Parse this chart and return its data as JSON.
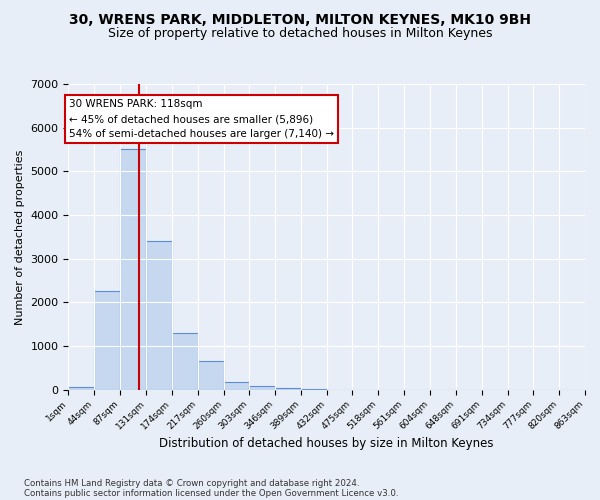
{
  "title": "30, WRENS PARK, MIDDLETON, MILTON KEYNES, MK10 9BH",
  "subtitle": "Size of property relative to detached houses in Milton Keynes",
  "xlabel": "Distribution of detached houses by size in Milton Keynes",
  "ylabel": "Number of detached properties",
  "footnote1": "Contains HM Land Registry data © Crown copyright and database right 2024.",
  "footnote2": "Contains public sector information licensed under the Open Government Licence v3.0.",
  "annotation_title": "30 WRENS PARK: 118sqm",
  "annotation_line1": "← 45% of detached houses are smaller (5,896)",
  "annotation_line2": "54% of semi-detached houses are larger (7,140) →",
  "property_size": 118,
  "bin_edges": [
    1,
    44,
    87,
    131,
    174,
    217,
    260,
    303,
    346,
    389,
    432,
    475,
    518,
    561,
    604,
    648,
    691,
    734,
    777,
    820,
    863
  ],
  "bin_labels": [
    "1sqm",
    "44sqm",
    "87sqm",
    "131sqm",
    "174sqm",
    "217sqm",
    "260sqm",
    "303sqm",
    "346sqm",
    "389sqm",
    "432sqm",
    "475sqm",
    "518sqm",
    "561sqm",
    "604sqm",
    "648sqm",
    "691sqm",
    "734sqm",
    "777sqm",
    "820sqm",
    "863sqm"
  ],
  "bar_heights": [
    50,
    2250,
    5500,
    3400,
    1300,
    650,
    175,
    75,
    30,
    8,
    2,
    1,
    0,
    0,
    0,
    0,
    0,
    0,
    0,
    0
  ],
  "bar_color": "#c5d8f0",
  "bar_edgecolor": "#5b8dd9",
  "vline_color": "#cc0000",
  "ylim": [
    0,
    7000
  ],
  "yticks": [
    0,
    1000,
    2000,
    3000,
    4000,
    5000,
    6000,
    7000
  ],
  "bg_color": "#e8eef7",
  "plot_bg_color": "#e8eef7",
  "grid_color": "#ffffff",
  "annotation_box_edgecolor": "#cc0000",
  "title_fontsize": 10,
  "subtitle_fontsize": 9
}
